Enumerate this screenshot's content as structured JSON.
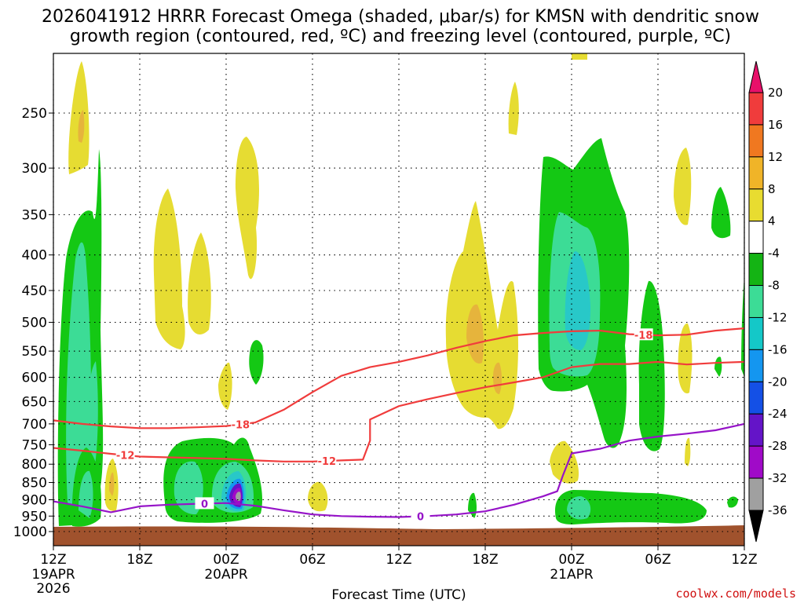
{
  "chart_data": {
    "type": "heatmap",
    "title_line1": "2026041912 HRRR Forecast Omega (shaded, μbar/s) for KMSN with dendritic snow",
    "title_line2": "growth region (contoured, red, ºC) and freezing level (contoured, purple, ºC)",
    "xlabel": "Forecast Time (UTC)",
    "ylabel": "",
    "credit": "coolwx.com/models",
    "x_range_hours": [
      0,
      48
    ],
    "x_ticks": [
      {
        "hour": 0,
        "label": "12Z",
        "sub1": "19APR",
        "sub2": "2026"
      },
      {
        "hour": 6,
        "label": "18Z",
        "sub1": "",
        "sub2": ""
      },
      {
        "hour": 12,
        "label": "00Z",
        "sub1": "20APR",
        "sub2": ""
      },
      {
        "hour": 18,
        "label": "06Z",
        "sub1": "",
        "sub2": ""
      },
      {
        "hour": 24,
        "label": "12Z",
        "sub1": "",
        "sub2": ""
      },
      {
        "hour": 30,
        "label": "18Z",
        "sub1": "",
        "sub2": ""
      },
      {
        "hour": 36,
        "label": "00Z",
        "sub1": "21APR",
        "sub2": ""
      },
      {
        "hour": 42,
        "label": "06Z",
        "sub1": "",
        "sub2": ""
      },
      {
        "hour": 48,
        "label": "12Z",
        "sub1": "",
        "sub2": ""
      }
    ],
    "y_unit": "hPa",
    "y_range": [
      1000,
      200
    ],
    "y_ticks": [
      "250",
      "300",
      "350",
      "400",
      "450",
      "500",
      "550",
      "600",
      "650",
      "700",
      "750",
      "800",
      "850",
      "900",
      "950",
      "1000"
    ],
    "colorbar": {
      "labels": [
        "20",
        "16",
        "12",
        "8",
        "4",
        "-4",
        "-8",
        "-12",
        "-16",
        "-20",
        "-24",
        "-28",
        "-32",
        "-36"
      ],
      "colors": [
        "#e8106a",
        "#f03c3c",
        "#f07820",
        "#f0b428",
        "#e8dc30",
        "#ffffff",
        "#14b414",
        "#3cdc96",
        "#14c8c8",
        "#1496f0",
        "#1450e6",
        "#6414c8",
        "#a00ac8",
        "#a0a0a0",
        "#000000"
      ]
    },
    "colors": {
      "omega_neg4": "#14c814",
      "omega_neg8": "#3cdc96",
      "omega_neg12": "#28c8c8",
      "omega_neg16": "#1496f0",
      "omega_neg20": "#1450e6",
      "omega_neg24": "#6414c8",
      "omega_neg28": "#a00ac8",
      "omega_neg32": "#a0a0a0",
      "omega_pos4": "#e6dc32",
      "omega_pos8": "#e6b43c",
      "terrain": "#a0522d",
      "dgz_contour": "#f03c3c",
      "freezing_contour": "#9614c8"
    },
    "contour_labels": {
      "dgz_cold": "-18",
      "dgz_warm": "-12",
      "freezing": "0"
    },
    "series": [
      {
        "name": "-18 ºC isotherm",
        "hours": [
          0,
          2,
          4,
          6,
          8,
          10,
          12,
          14,
          16,
          18,
          20,
          22,
          24,
          26,
          28,
          30,
          32,
          34,
          36,
          38,
          40,
          42,
          44,
          46,
          48
        ],
        "values": [
          692,
          700,
          706,
          710,
          710,
          708,
          705,
          697,
          668,
          630,
          597,
          580,
          570,
          558,
          544,
          532,
          522,
          518,
          515,
          514,
          520,
          522,
          521,
          514,
          510
        ]
      },
      {
        "name": "-12 ºC isotherm",
        "hours": [
          0,
          2,
          4,
          6,
          8,
          10,
          12,
          14,
          16,
          18,
          20,
          21.5,
          22,
          22,
          24,
          26,
          28,
          30,
          32,
          34,
          36,
          38,
          40,
          42,
          44,
          46,
          48
        ],
        "values": [
          758,
          765,
          773,
          780,
          782,
          784,
          786,
          790,
          793,
          793,
          790,
          788,
          740,
          690,
          660,
          645,
          632,
          620,
          610,
          600,
          580,
          574,
          574,
          570,
          575,
          572,
          570
        ]
      },
      {
        "name": "0 ºC freezing level",
        "hours": [
          0,
          2,
          4,
          6,
          8,
          10,
          12,
          14,
          16,
          18,
          20,
          22,
          24,
          26,
          28,
          30,
          32,
          34,
          35,
          35.4,
          36,
          38,
          40,
          42,
          44,
          46,
          48
        ],
        "values": [
          905,
          920,
          938,
          920,
          915,
          912,
          910,
          918,
          932,
          945,
          950,
          952,
          953,
          950,
          945,
          935,
          915,
          890,
          875,
          830,
          772,
          760,
          740,
          730,
          723,
          715,
          700
        ]
      }
    ]
  }
}
